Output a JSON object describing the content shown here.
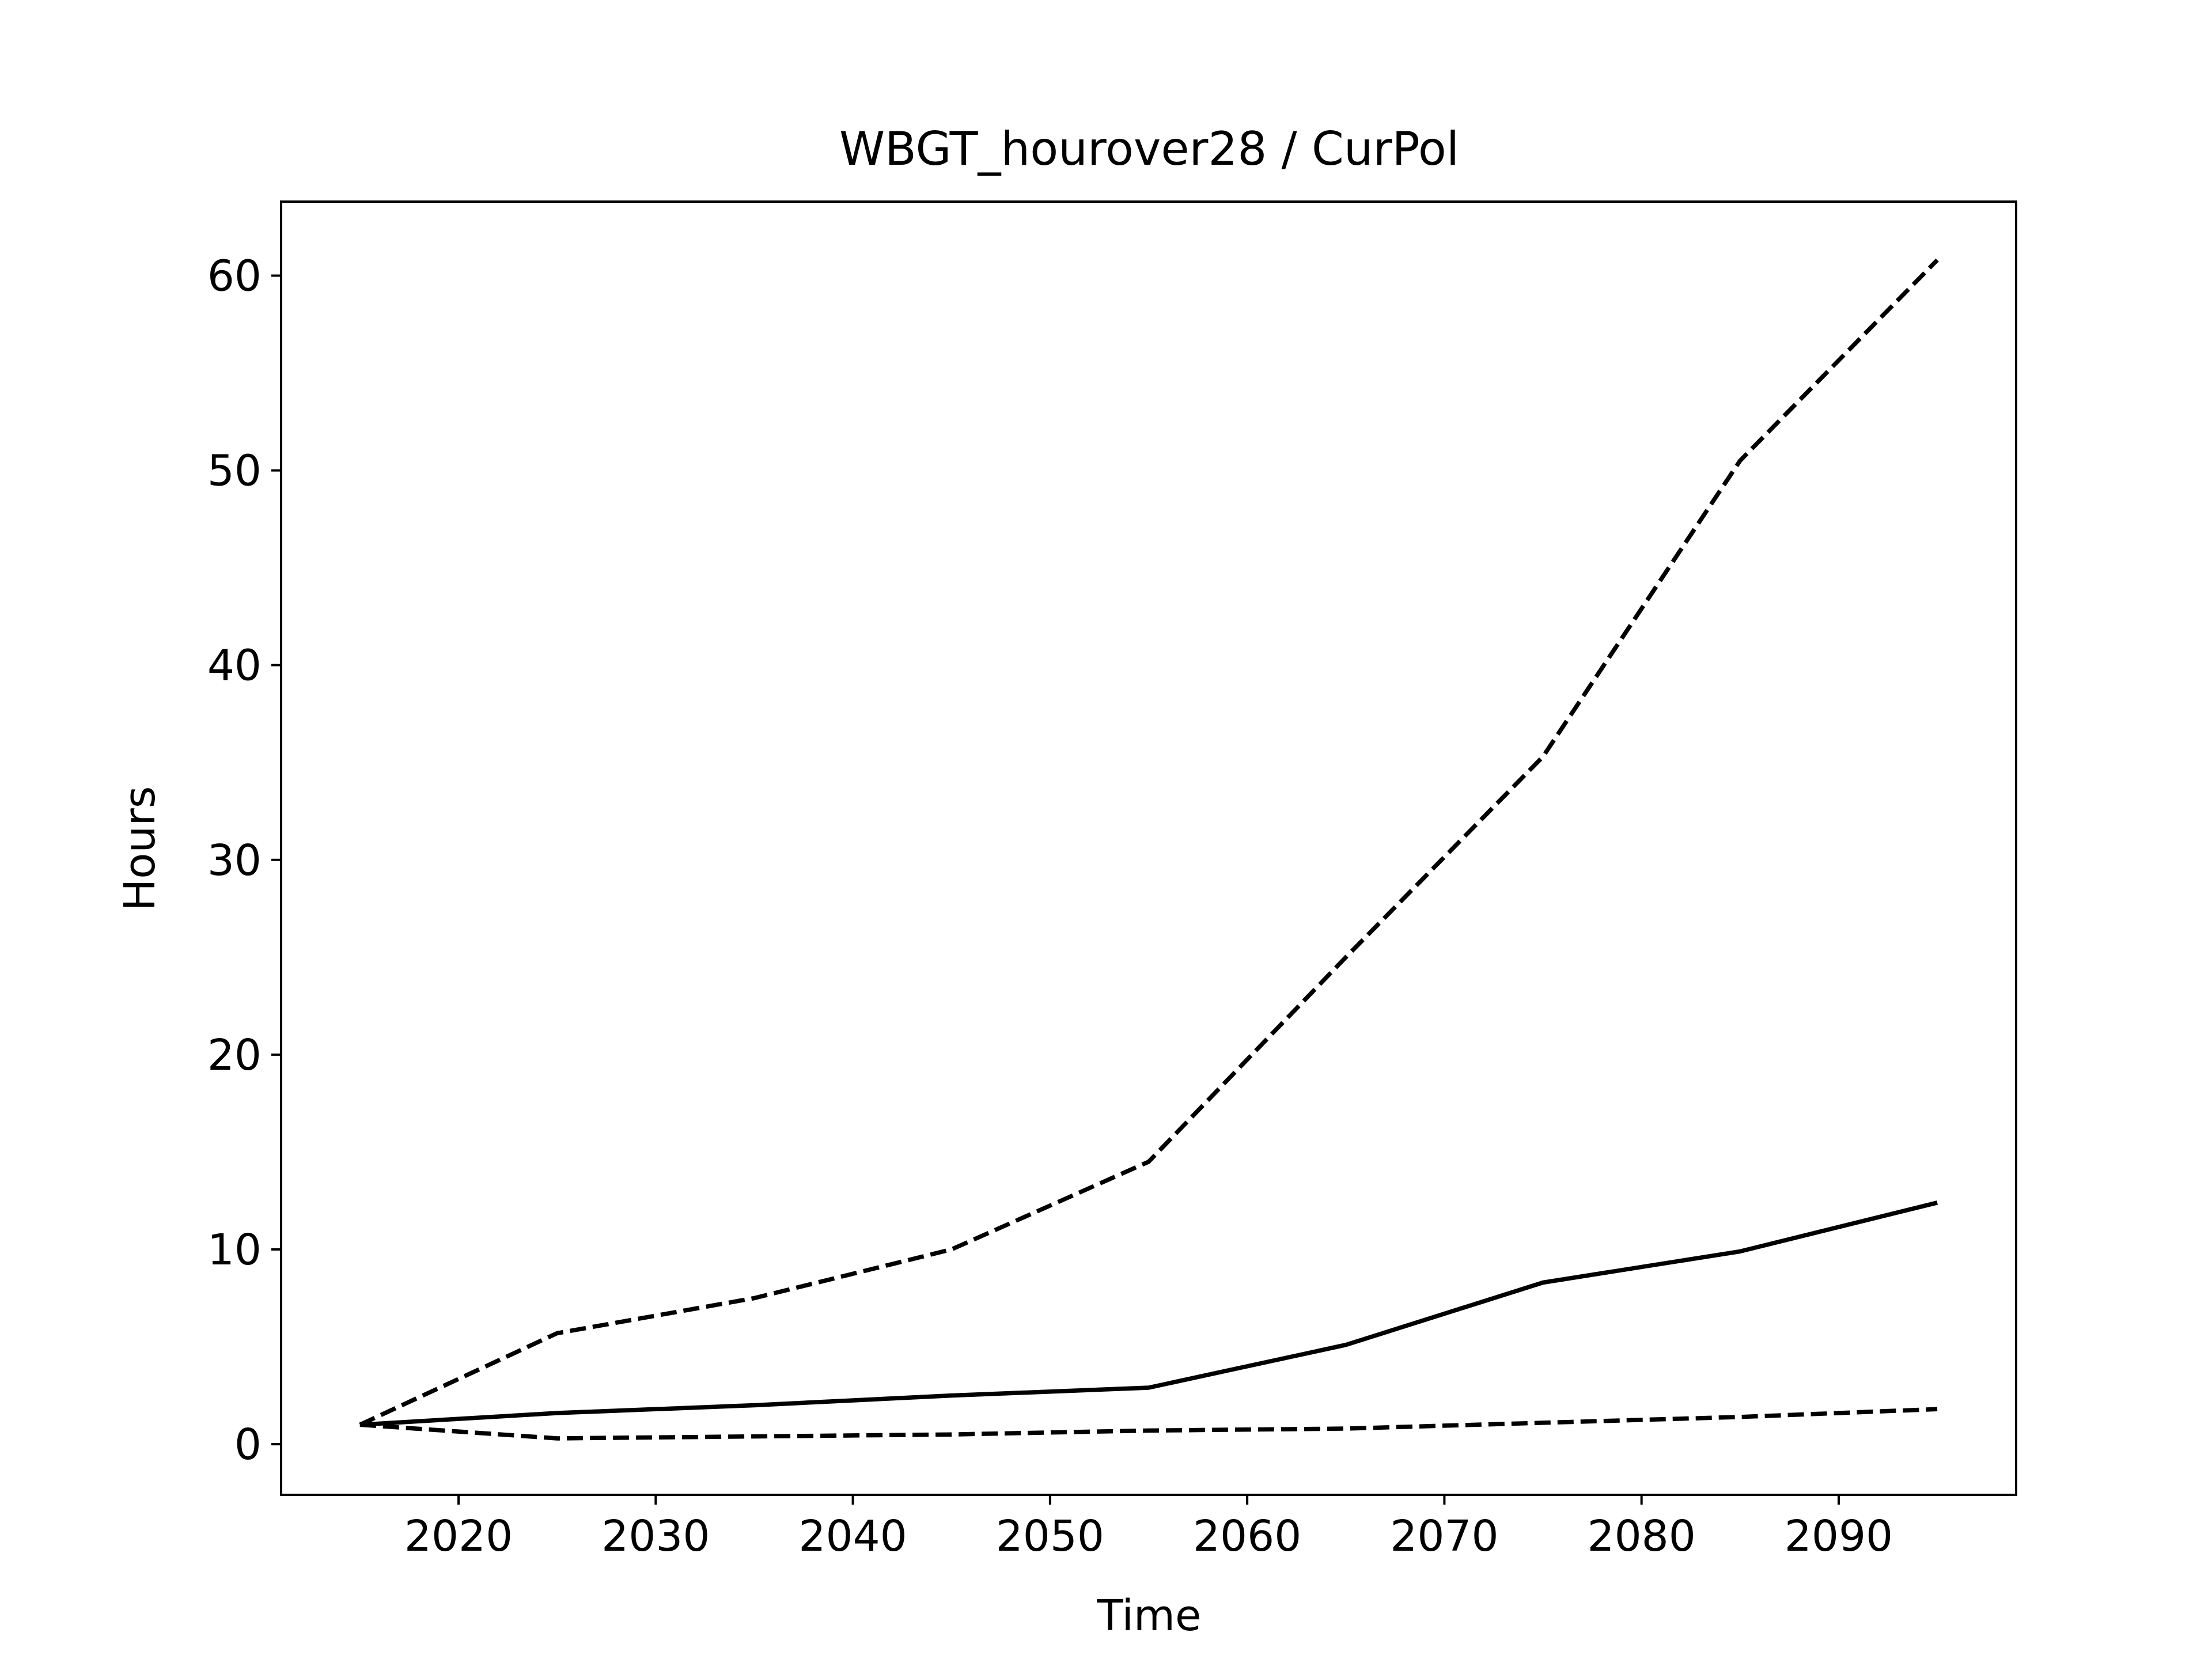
{
  "chart_data": {
    "type": "line",
    "title": "WBGT_hourover28 / CurPol",
    "xlabel": "Time",
    "ylabel": "Hours",
    "xlim": [
      2011,
      2099
    ],
    "ylim": [
      -2.6,
      63.8
    ],
    "xticks": [
      2020,
      2030,
      2040,
      2050,
      2060,
      2070,
      2080,
      2090
    ],
    "yticks": [
      0,
      10,
      20,
      30,
      40,
      50,
      60
    ],
    "grid": false,
    "legend": "none",
    "color": "#000000",
    "x": [
      2015,
      2025,
      2035,
      2045,
      2055,
      2065,
      2075,
      2085,
      2095
    ],
    "series": [
      {
        "style": "dashed",
        "values": [
          1.0,
          5.7,
          7.5,
          10.0,
          14.5,
          25.0,
          35.3,
          50.5,
          60.8
        ]
      },
      {
        "style": "solid",
        "values": [
          1.0,
          1.6,
          2.0,
          2.5,
          2.9,
          5.1,
          8.3,
          9.9,
          12.4
        ]
      },
      {
        "style": "dashed",
        "values": [
          1.0,
          0.3,
          0.4,
          0.5,
          0.7,
          0.8,
          1.1,
          1.4,
          1.8
        ]
      }
    ]
  }
}
